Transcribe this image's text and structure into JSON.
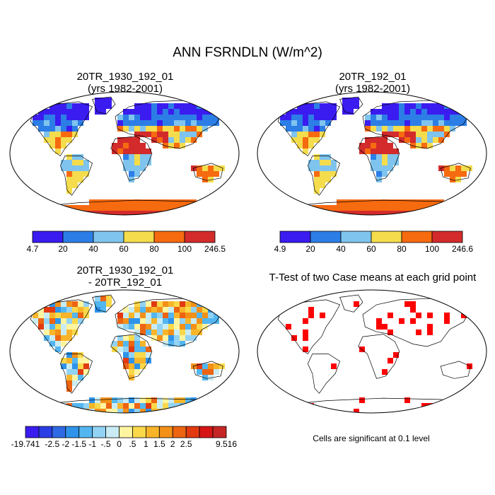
{
  "chart_data": {
    "type": "map",
    "title": "ANN FSRNDLN (W/m^2)",
    "panels": [
      {
        "id": "case1",
        "title_line1": "20TR_1930_192_01",
        "title_line2": "(yrs 1982-2001)",
        "colorbar": {
          "colors": [
            "#3b1cf0",
            "#2c7ee6",
            "#7ec4ee",
            "#f4dc4c",
            "#f66a10",
            "#d32b2b"
          ],
          "labels": [
            "4.7",
            "20",
            "40",
            "60",
            "80",
            "100",
            "246.5"
          ]
        }
      },
      {
        "id": "case2",
        "title_line1": "20TR_192_01",
        "title_line2": "(yrs 1982-2001)",
        "colorbar": {
          "colors": [
            "#3b1cf0",
            "#2c7ee6",
            "#7ec4ee",
            "#f4dc4c",
            "#f66a10",
            "#d32b2b"
          ],
          "labels": [
            "4.9",
            "20",
            "40",
            "60",
            "80",
            "100",
            "246.6"
          ]
        }
      },
      {
        "id": "diff",
        "title_line1": "20TR_1930_192_01",
        "title_line2": "- 20TR_192_01",
        "colorbar": {
          "colors": [
            "#3b1cf0",
            "#2a3ee6",
            "#2f69e4",
            "#2f93ea",
            "#53b6f0",
            "#92d3f4",
            "#c9ecf4",
            "#fff4a0",
            "#f9d84a",
            "#f8b52a",
            "#f39018",
            "#ed6412",
            "#e13a10",
            "#d81515",
            "#c62626"
          ],
          "labels": [
            "-19.741",
            "-2.5",
            "-2",
            "-1.5",
            "-1",
            "-.5",
            "0",
            ".5",
            "1",
            "1.5",
            "2",
            "2.5",
            "9.516"
          ]
        }
      },
      {
        "id": "ttest",
        "title_line1": "T-Test of two Case means at each grid point",
        "note": "Cells are significant at 0.1 level",
        "significant_color": "#ff0000"
      }
    ]
  }
}
